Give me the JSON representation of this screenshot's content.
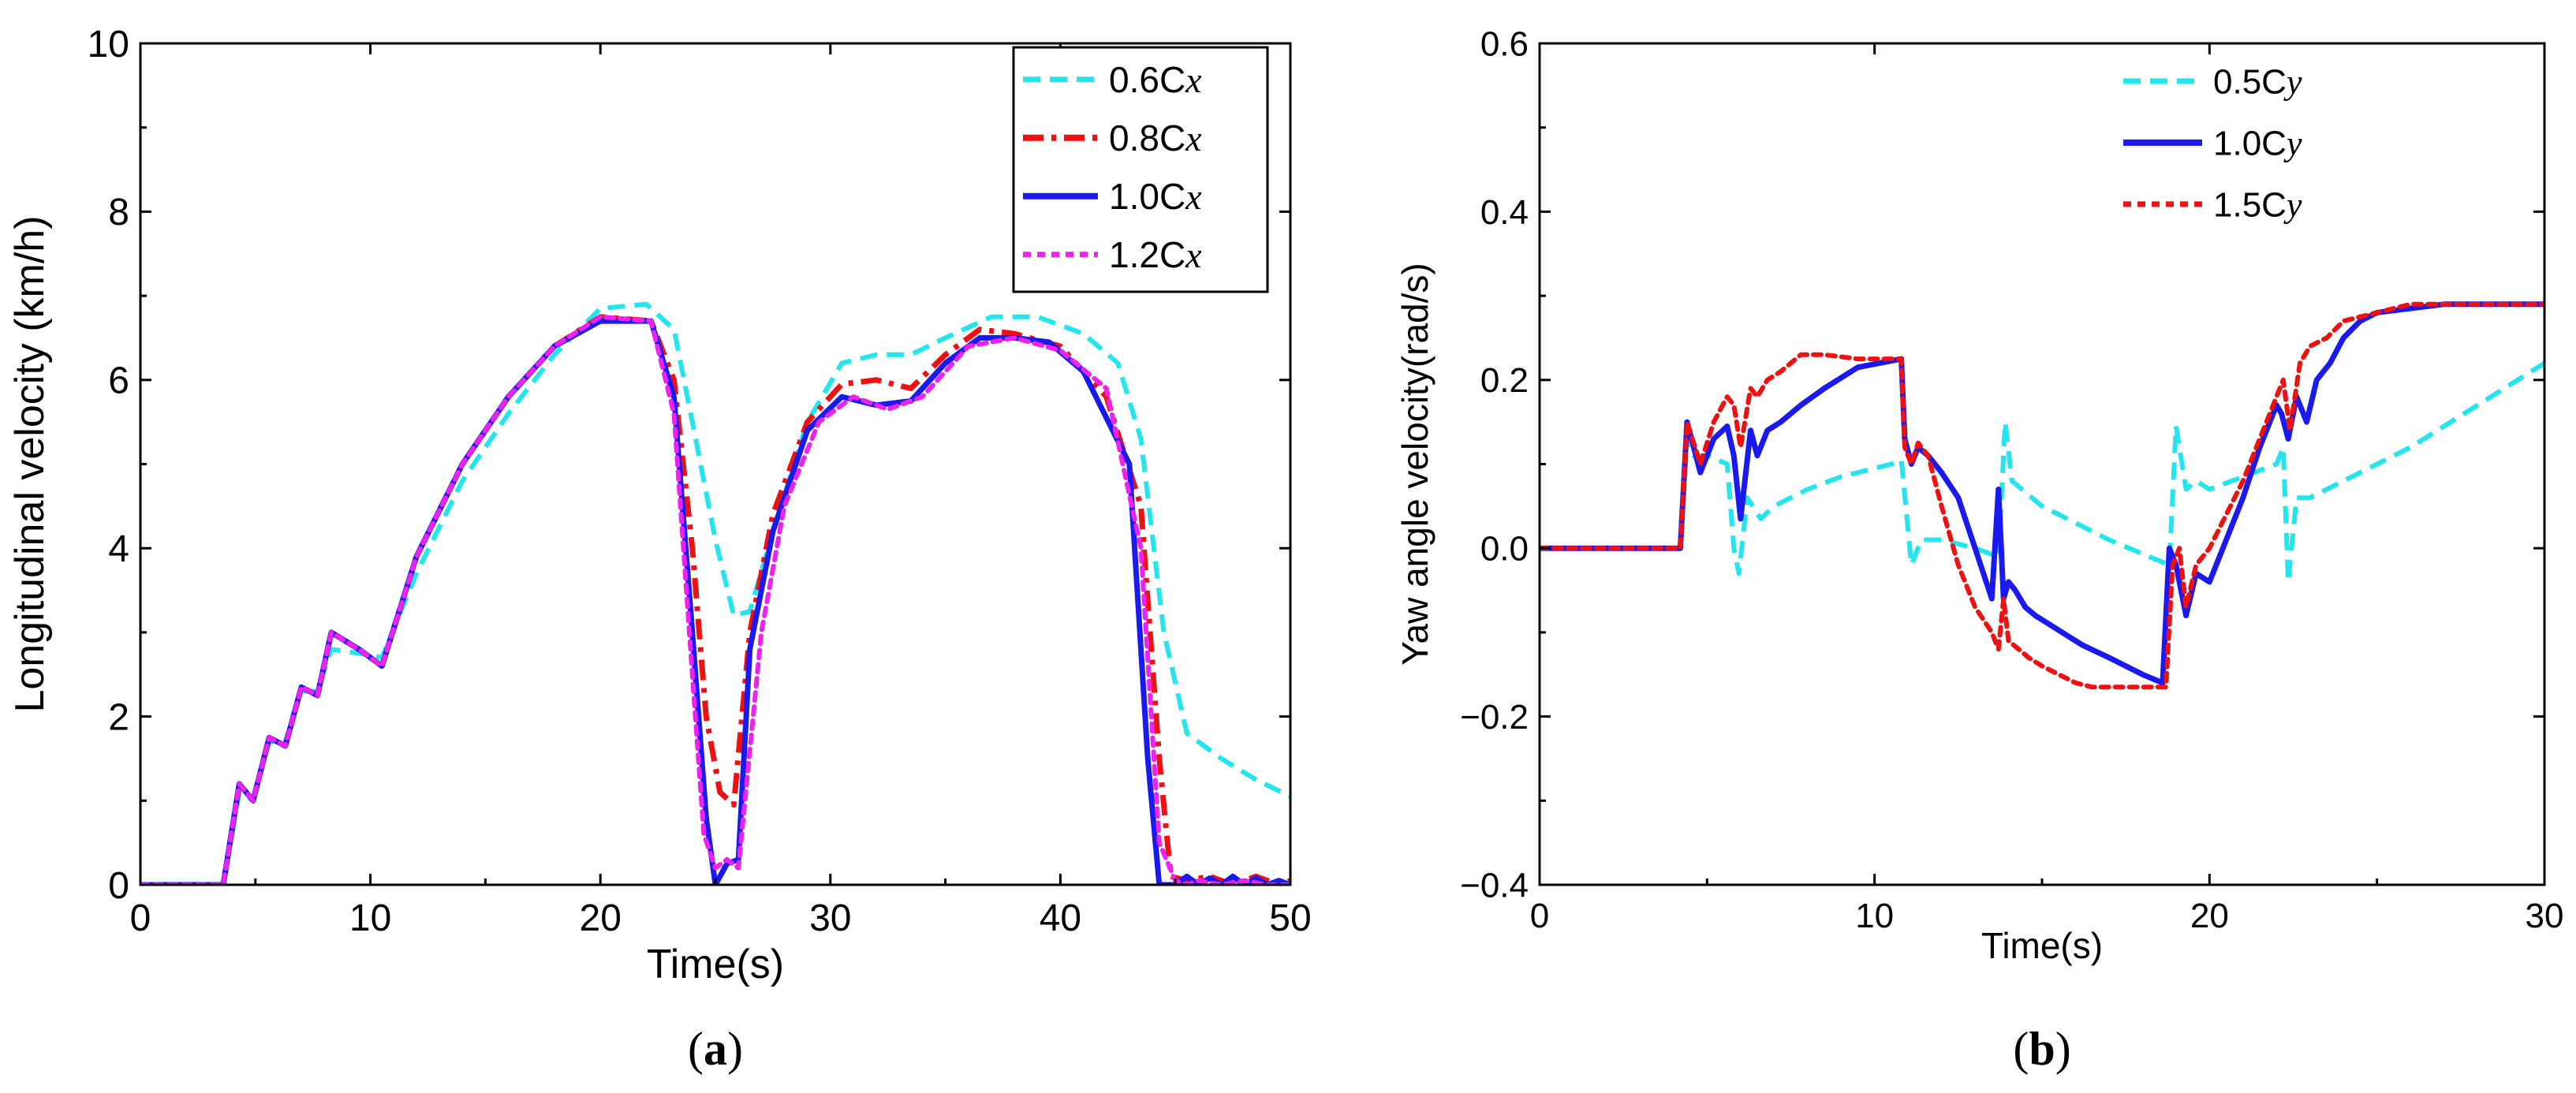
{
  "chart_data": [
    {
      "type": "line",
      "panel_label": "a",
      "xlabel": "Time(s)",
      "ylabel": "Longitudinal velocity (km/h)",
      "xlim": [
        0,
        50
      ],
      "ylim": [
        0,
        10
      ],
      "xticks": [
        0,
        10,
        20,
        30,
        40,
        50
      ],
      "yticks": [
        0,
        2,
        4,
        6,
        8,
        10
      ],
      "grid": false,
      "legend": {
        "position": "top-right",
        "boxed": true
      },
      "series": [
        {
          "name": "0.6Cx",
          "base": "0.6C",
          "suffix": "x",
          "color": "#22e5ee",
          "dash": "dash",
          "x": [
            0,
            3.6,
            4.3,
            4.9,
            5.6,
            6.3,
            7.0,
            7.7,
            8.3,
            9.5,
            10.5,
            12,
            14,
            16,
            18,
            20,
            22,
            23.2,
            24,
            25,
            25.8,
            26.5,
            27.5,
            29,
            30.5,
            32,
            33.5,
            35,
            37,
            39,
            41,
            42.5,
            43.5,
            44.5,
            45.5,
            47,
            48.5,
            50
          ],
          "y": [
            0,
            0,
            1.1,
            1.0,
            1.7,
            1.7,
            2.3,
            2.3,
            2.8,
            2.75,
            2.7,
            3.7,
            4.8,
            5.6,
            6.3,
            6.85,
            6.9,
            6.6,
            5.5,
            4.1,
            3.2,
            3.25,
            4.2,
            5.5,
            6.2,
            6.3,
            6.3,
            6.5,
            6.75,
            6.75,
            6.55,
            6.2,
            5.3,
            3.0,
            1.8,
            1.5,
            1.25,
            1.05
          ]
        },
        {
          "name": "0.8Cx",
          "base": "0.8C",
          "suffix": "x",
          "color": "#ee1111",
          "dash": "dashdot",
          "x": [
            0,
            3.6,
            4.3,
            4.9,
            5.6,
            6.3,
            7.0,
            7.7,
            8.3,
            9.5,
            10.5,
            12,
            14,
            16,
            18,
            20,
            22.2,
            23.2,
            24,
            24.6,
            25.2,
            25.8,
            26.5,
            27.5,
            29,
            30.5,
            32,
            33.5,
            35,
            36.5,
            38,
            40,
            42,
            43.5,
            44.3,
            44.8,
            45.5,
            46.5,
            47.5,
            48.5,
            49.5,
            50
          ],
          "y": [
            0,
            0,
            1.2,
            1.0,
            1.75,
            1.65,
            2.35,
            2.25,
            3.0,
            2.8,
            2.6,
            3.9,
            5.0,
            5.8,
            6.4,
            6.75,
            6.7,
            6.0,
            4.0,
            2.0,
            1.1,
            0.95,
            3.0,
            4.4,
            5.5,
            5.95,
            6.0,
            5.9,
            6.3,
            6.6,
            6.55,
            6.4,
            5.8,
            4.5,
            1.5,
            0.1,
            0.05,
            0.1,
            0,
            0.1,
            0,
            0.05
          ]
        },
        {
          "name": "1.0Cx",
          "base": "1.0C",
          "suffix": "x",
          "color": "#1a1aee",
          "dash": "solid",
          "x": [
            0,
            3.6,
            4.3,
            4.9,
            5.6,
            6.3,
            7.0,
            7.7,
            8.3,
            9.5,
            10.5,
            12,
            14,
            16,
            18,
            20,
            22.2,
            23.2,
            24,
            24.6,
            25.0,
            25.5,
            26.0,
            26.5,
            27.5,
            29,
            30.5,
            32,
            33.5,
            35,
            36.5,
            38,
            39.5,
            41,
            43,
            43.8,
            44.3,
            45.0,
            45.5,
            46,
            46.5,
            47,
            47.5,
            48,
            48.5,
            49,
            49.5,
            50
          ],
          "y": [
            0,
            0,
            1.2,
            1.0,
            1.75,
            1.65,
            2.35,
            2.25,
            3.0,
            2.8,
            2.6,
            3.9,
            5.0,
            5.8,
            6.4,
            6.7,
            6.7,
            5.8,
            3.0,
            0.8,
            0,
            0.25,
            0.3,
            2.8,
            4.2,
            5.4,
            5.8,
            5.7,
            5.75,
            6.2,
            6.5,
            6.5,
            6.45,
            6.1,
            5.0,
            1.5,
            0,
            0,
            0.1,
            0,
            0.08,
            0,
            0.1,
            0,
            0.08,
            0,
            0.05,
            0
          ]
        },
        {
          "name": "1.2Cx",
          "base": "1.2C",
          "suffix": "x",
          "color": "#ee22ee",
          "dash": "dot",
          "x": [
            0,
            3.6,
            4.3,
            4.9,
            5.6,
            6.3,
            7.0,
            7.7,
            8.3,
            9.5,
            10.5,
            12,
            14,
            16,
            18,
            20,
            22.2,
            23.2,
            24,
            24.5,
            25.0,
            25.5,
            26.0,
            27,
            28,
            29.5,
            31,
            32.5,
            34,
            36,
            38,
            40,
            42,
            43.5,
            44.3,
            45,
            45.5,
            46,
            47,
            48,
            49,
            50
          ],
          "y": [
            0,
            0,
            1.2,
            1.0,
            1.75,
            1.65,
            2.35,
            2.25,
            3.0,
            2.8,
            2.6,
            3.9,
            5.0,
            5.8,
            6.4,
            6.75,
            6.7,
            5.6,
            2.5,
            0.6,
            0.2,
            0.3,
            0.2,
            3.0,
            4.5,
            5.5,
            5.8,
            5.65,
            5.8,
            6.4,
            6.5,
            6.35,
            5.9,
            4.0,
            0.5,
            0.05,
            0,
            0.05,
            0,
            0.05,
            0,
            0
          ]
        }
      ]
    },
    {
      "type": "line",
      "panel_label": "b",
      "xlabel": "Time(s)",
      "ylabel": "Yaw angle velocity(rad/s)",
      "xlim": [
        0,
        30
      ],
      "ylim": [
        -0.4,
        0.6
      ],
      "xticks": [
        0,
        10,
        20,
        30
      ],
      "yticks": [
        -0.4,
        -0.2,
        0.0,
        0.2,
        0.4,
        0.6
      ],
      "ytick_labels": [
        "−0.4",
        "−0.2",
        "0.0",
        "0.2",
        "0.4",
        "0.6"
      ],
      "grid": false,
      "legend": {
        "position": "top-center",
        "boxed": false
      },
      "series": [
        {
          "name": "0.5Cy",
          "base": "0.5C",
          "suffix": "y",
          "color": "#22e5ee",
          "dash": "dash",
          "x": [
            0,
            4.2,
            4.4,
            4.6,
            5.0,
            5.6,
            5.8,
            5.95,
            6.2,
            6.6,
            7.0,
            8,
            9,
            10.5,
            10.8,
            11.1,
            11.4,
            12,
            13,
            13.7,
            13.9,
            14.1,
            14.4,
            15,
            16,
            17,
            18.8,
            19.0,
            19.3,
            19.6,
            20,
            22,
            22.2,
            22.35,
            22.6,
            23,
            24,
            26,
            28,
            30
          ],
          "y": [
            0,
            0,
            0.13,
            0.11,
            0.11,
            0.1,
            0.0,
            -0.03,
            0.06,
            0.035,
            0.05,
            0.07,
            0.085,
            0.1,
            0.105,
            -0.02,
            0.01,
            0.01,
            0.0,
            -0.01,
            0.15,
            0.08,
            0.07,
            0.05,
            0.03,
            0.01,
            -0.02,
            0.145,
            0.07,
            0.08,
            0.07,
            0.1,
            0.12,
            -0.04,
            0.06,
            0.06,
            0.08,
            0.12,
            0.17,
            0.22
          ]
        },
        {
          "name": "1.0Cy",
          "base": "1.0C",
          "suffix": "y",
          "color": "#1a1aee",
          "dash": "solid",
          "x": [
            0,
            4.2,
            4.4,
            4.8,
            5.2,
            5.6,
            5.8,
            6.0,
            6.3,
            6.5,
            6.8,
            7.2,
            7.8,
            8.5,
            9.5,
            10.8,
            10.9,
            11.1,
            11.3,
            11.6,
            12,
            12.5,
            13,
            13.5,
            13.7,
            13.85,
            14.0,
            14.2,
            14.5,
            14.8,
            15.2,
            15.6,
            16.2,
            17,
            18,
            18.6,
            18.8,
            19.0,
            19.3,
            19.6,
            20,
            21,
            21.5,
            22,
            22.15,
            22.35,
            22.6,
            22.9,
            23.2,
            23.6,
            24,
            24.5,
            25,
            26,
            27,
            28,
            29,
            30
          ],
          "y": [
            0,
            0,
            0.15,
            0.09,
            0.13,
            0.145,
            0.11,
            0.035,
            0.14,
            0.11,
            0.14,
            0.15,
            0.17,
            0.19,
            0.215,
            0.225,
            0.13,
            0.1,
            0.12,
            0.11,
            0.09,
            0.06,
            0.0,
            -0.06,
            0.07,
            -0.06,
            -0.04,
            -0.05,
            -0.07,
            -0.08,
            -0.09,
            -0.1,
            -0.115,
            -0.13,
            -0.15,
            -0.16,
            0.0,
            -0.02,
            -0.08,
            -0.03,
            -0.04,
            0.06,
            0.12,
            0.17,
            0.16,
            0.13,
            0.18,
            0.15,
            0.2,
            0.22,
            0.25,
            0.27,
            0.28,
            0.285,
            0.29,
            0.29,
            0.29,
            0.29
          ]
        },
        {
          "name": "1.5Cy",
          "base": "1.5C",
          "suffix": "y",
          "color": "#ee1111",
          "dash": "dot",
          "x": [
            0,
            4.2,
            4.4,
            4.8,
            5.2,
            5.6,
            5.8,
            6.0,
            6.3,
            6.5,
            6.8,
            7.2,
            7.8,
            8.5,
            9.5,
            10.8,
            10.9,
            11.1,
            11.3,
            11.6,
            12,
            12.5,
            13,
            13.5,
            13.7,
            13.85,
            14.0,
            14.3,
            14.6,
            15,
            15.5,
            16,
            16.5,
            17,
            18,
            18.7,
            18.9,
            19.1,
            19.3,
            19.6,
            20,
            21,
            21.5,
            22,
            22.2,
            22.4,
            22.7,
            23,
            23.5,
            24,
            25,
            26,
            27,
            28,
            29,
            30
          ],
          "y": [
            0,
            0,
            0.15,
            0.1,
            0.15,
            0.18,
            0.17,
            0.12,
            0.19,
            0.18,
            0.2,
            0.21,
            0.23,
            0.23,
            0.225,
            0.225,
            0.12,
            0.1,
            0.125,
            0.11,
            0.05,
            -0.02,
            -0.07,
            -0.1,
            -0.12,
            -0.06,
            -0.11,
            -0.12,
            -0.13,
            -0.14,
            -0.15,
            -0.16,
            -0.165,
            -0.165,
            -0.165,
            -0.165,
            -0.02,
            0.0,
            -0.07,
            -0.02,
            0.0,
            0.08,
            0.13,
            0.18,
            0.2,
            0.14,
            0.22,
            0.24,
            0.25,
            0.27,
            0.28,
            0.29,
            0.29,
            0.29,
            0.29,
            0.29
          ]
        }
      ]
    }
  ]
}
